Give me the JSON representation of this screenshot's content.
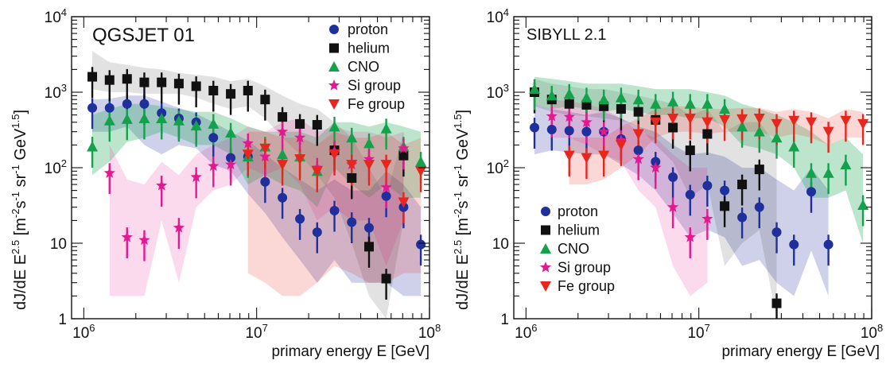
{
  "figure": {
    "y_axis_label": "dJ/dE  E^2.5  [m^-2 s^-1 sr^-1 GeV^1.5]",
    "x_axis_label": "primary energy E  [GeV]",
    "x_ticks": [
      "10^6",
      "10^7",
      "10^8"
    ],
    "y_ticks": [
      "1",
      "10",
      "10^2",
      "10^3",
      "10^4"
    ]
  },
  "colors": {
    "proton": "#1f2f9c",
    "helium": "#111111",
    "CNO": "#13a24b",
    "Si group": "#e5198f",
    "Fe group": "#e8261e"
  },
  "chart_data": [
    {
      "type": "scatter",
      "title": "QGSJET 01",
      "xlabel": "primary energy E  [GeV]",
      "ylabel": "dJ/dE  E^2.5  [m^-2 s^-1 sr^-1 GeV^1.5]",
      "x_scale": "log",
      "y_scale": "log",
      "xlim": [
        850000,
        100000000
      ],
      "ylim": [
        1,
        10000
      ],
      "legend_position": "top-right",
      "series": [
        {
          "name": "proton",
          "marker": "circle",
          "x": [
            1120000,
            1410000,
            1780000,
            2240000,
            2820000,
            3550000,
            4470000,
            5620000,
            7080000,
            8910000,
            11200000,
            14100000,
            17800000,
            22400000,
            28200000,
            35500000,
            44700000,
            56200000,
            70800000,
            89100000
          ],
          "y": [
            620,
            620,
            700,
            700,
            530,
            450,
            400,
            250,
            135,
            140,
            65,
            40,
            21,
            14,
            27,
            19,
            16,
            42,
            30,
            9.6
          ],
          "band_low": [
            300,
            300,
            350,
            200,
            150,
            200,
            180,
            110,
            90,
            45,
            25,
            12,
            6,
            3,
            6,
            3,
            3,
            3,
            2,
            2
          ],
          "band_high": [
            800,
            820,
            900,
            900,
            750,
            620,
            520,
            400,
            300,
            230,
            150,
            100,
            70,
            50,
            70,
            50,
            50,
            90,
            60,
            30
          ]
        },
        {
          "name": "helium",
          "marker": "square",
          "x": [
            1120000,
            1410000,
            1780000,
            2240000,
            2820000,
            3550000,
            4470000,
            5620000,
            7080000,
            8910000,
            11200000,
            14100000,
            17800000,
            22400000,
            28200000,
            35500000,
            44700000,
            56200000,
            70800000
          ],
          "y": [
            1600,
            1450,
            1500,
            1350,
            1350,
            1300,
            1200,
            1050,
            950,
            1050,
            800,
            470,
            380,
            370,
            170,
            73,
            9,
            3.4,
            145
          ],
          "band_low": [
            1100,
            1000,
            1000,
            950,
            950,
            950,
            850,
            700,
            600,
            650,
            450,
            250,
            150,
            80,
            40,
            10,
            2,
            1,
            20
          ],
          "band_high": [
            3500,
            2500,
            2300,
            2100,
            2000,
            1800,
            1700,
            1600,
            1400,
            1500,
            1200,
            900,
            700,
            600,
            400,
            250,
            100,
            40,
            300
          ]
        },
        {
          "name": "CNO",
          "marker": "triangle-up",
          "x": [
            1120000,
            1410000,
            1780000,
            2240000,
            2820000,
            3550000,
            4470000,
            5620000,
            7080000,
            8910000,
            11200000,
            14100000,
            17800000,
            22400000,
            28200000,
            35500000,
            44700000,
            56200000,
            70800000,
            89100000
          ],
          "y": [
            190,
            420,
            440,
            450,
            450,
            420,
            360,
            380,
            290,
            140,
            190,
            150,
            140,
            90,
            350,
            250,
            210,
            330,
            190,
            120
          ],
          "band_low": [
            80,
            120,
            220,
            250,
            300,
            250,
            200,
            200,
            150,
            60,
            80,
            60,
            50,
            30,
            100,
            60,
            40,
            60,
            40,
            40
          ],
          "band_high": [
            500,
            600,
            700,
            700,
            650,
            600,
            550,
            550,
            450,
            350,
            300,
            300,
            300,
            250,
            400,
            400,
            350,
            400,
            350,
            300
          ]
        },
        {
          "name": "Si group",
          "marker": "star",
          "x": [
            1410000,
            1780000,
            2240000,
            2820000,
            3550000,
            4470000,
            5620000,
            7080000,
            8910000,
            11200000,
            14100000,
            17800000,
            22400000,
            28200000,
            35500000,
            44700000,
            56200000,
            70800000
          ],
          "y": [
            85,
            12,
            11,
            58,
            16,
            75,
            105,
            110,
            210,
            140,
            300,
            250,
            100,
            165,
            110,
            130,
            55,
            180
          ],
          "band_low": [
            2,
            2,
            2,
            20,
            3,
            30,
            50,
            60,
            100,
            80,
            100,
            60,
            20,
            30,
            20,
            20,
            5,
            20
          ],
          "band_high": [
            200,
            70,
            60,
            120,
            80,
            150,
            200,
            250,
            350,
            300,
            400,
            450,
            300,
            350,
            300,
            300,
            250,
            300
          ]
        },
        {
          "name": "Fe group",
          "marker": "triangle-down",
          "x": [
            8910000,
            11200000,
            14100000,
            17800000,
            22400000,
            28200000,
            35500000,
            44700000,
            56200000,
            70800000,
            89100000
          ],
          "y": [
            150,
            180,
            110,
            130,
            90,
            150,
            110,
            110,
            110,
            35,
            90
          ],
          "band_low": [
            4,
            3,
            2,
            2,
            3,
            5,
            4,
            3,
            3,
            4,
            4
          ],
          "band_high": [
            300,
            300,
            250,
            250,
            200,
            300,
            250,
            250,
            300,
            200,
            250
          ]
        }
      ]
    },
    {
      "type": "scatter",
      "title": "SIBYLL 2.1",
      "xlabel": "primary energy E  [GeV]",
      "ylabel": "dJ/dE  E^2.5  [m^-2 s^-1 sr^-1 GeV^1.5]",
      "x_scale": "log",
      "y_scale": "log",
      "xlim": [
        850000,
        100000000
      ],
      "ylim": [
        1,
        10000
      ],
      "legend_position": "bottom-left",
      "series": [
        {
          "name": "proton",
          "marker": "circle",
          "x": [
            1120000,
            1410000,
            1780000,
            2240000,
            2820000,
            3550000,
            4470000,
            5620000,
            7080000,
            8910000,
            11200000,
            14100000,
            17800000,
            22400000,
            28200000,
            35500000,
            44700000,
            56200000
          ],
          "y": [
            340,
            320,
            310,
            300,
            300,
            240,
            170,
            120,
            75,
            44,
            58,
            50,
            22,
            30,
            14,
            9.6,
            48,
            9.6
          ],
          "band_low": [
            150,
            170,
            160,
            150,
            150,
            110,
            80,
            50,
            25,
            12,
            15,
            12,
            5,
            6,
            3,
            2,
            8,
            2
          ],
          "band_high": [
            700,
            600,
            550,
            500,
            550,
            450,
            350,
            300,
            200,
            150,
            160,
            140,
            100,
            100,
            70,
            50,
            100,
            50
          ]
        },
        {
          "name": "helium",
          "marker": "square",
          "x": [
            1120000,
            1410000,
            1780000,
            2240000,
            2820000,
            3550000,
            4470000,
            5620000,
            7080000,
            8910000,
            11200000,
            14100000,
            17800000,
            22400000,
            28200000
          ],
          "y": [
            1000,
            800,
            700,
            680,
            650,
            600,
            550,
            430,
            340,
            170,
            280,
            31,
            60,
            95,
            1.6
          ],
          "band_low": [
            650,
            550,
            500,
            480,
            450,
            420,
            350,
            200,
            120,
            40,
            60,
            5,
            10,
            15,
            1
          ],
          "band_high": [
            1500,
            1300,
            1200,
            1100,
            1100,
            1000,
            900,
            800,
            700,
            500,
            600,
            300,
            400,
            400,
            200
          ]
        },
        {
          "name": "CNO",
          "marker": "triangle-up",
          "x": [
            1120000,
            1410000,
            1780000,
            2240000,
            2820000,
            3550000,
            4470000,
            5620000,
            7080000,
            8910000,
            11200000,
            14100000,
            17800000,
            22400000,
            28200000,
            35500000,
            44700000,
            56200000,
            70800000,
            89100000
          ],
          "y": [
            1100,
            900,
            950,
            850,
            800,
            850,
            800,
            700,
            750,
            700,
            700,
            600,
            350,
            300,
            250,
            190,
            85,
            85,
            110,
            32
          ],
          "band_low": [
            700,
            600,
            650,
            600,
            550,
            600,
            550,
            500,
            500,
            450,
            450,
            350,
            200,
            180,
            150,
            100,
            40,
            40,
            50,
            10
          ],
          "band_high": [
            1600,
            1500,
            1400,
            1300,
            1300,
            1300,
            1200,
            1100,
            1100,
            1100,
            1000,
            900,
            700,
            600,
            500,
            400,
            300,
            200,
            250,
            150
          ]
        },
        {
          "name": "Si group",
          "marker": "star",
          "x": [
            1410000,
            1780000,
            2240000,
            2820000,
            3550000,
            4470000,
            5620000,
            7080000,
            8910000,
            11200000
          ],
          "y": [
            480,
            470,
            400,
            300,
            230,
            130,
            100,
            30,
            12,
            21
          ],
          "band_low": [
            250,
            250,
            200,
            150,
            120,
            50,
            30,
            5,
            2,
            3
          ],
          "band_high": [
            800,
            750,
            700,
            600,
            450,
            300,
            250,
            150,
            100,
            100
          ]
        },
        {
          "name": "Fe group",
          "marker": "triangle-down",
          "x": [
            1780000,
            2240000,
            2820000,
            3550000,
            4470000,
            5620000,
            7080000,
            8910000,
            11200000,
            14100000,
            17800000,
            22400000,
            28200000,
            35500000,
            44700000,
            56200000,
            70800000,
            89100000
          ],
          "y": [
            145,
            135,
            145,
            200,
            280,
            400,
            450,
            450,
            400,
            430,
            440,
            450,
            380,
            420,
            400,
            300,
            420,
            380
          ],
          "band_low": [
            60,
            60,
            70,
            100,
            150,
            250,
            300,
            300,
            280,
            300,
            300,
            300,
            250,
            280,
            250,
            200,
            250,
            250
          ],
          "band_high": [
            250,
            250,
            250,
            350,
            450,
            600,
            650,
            650,
            600,
            600,
            620,
            620,
            550,
            600,
            550,
            450,
            600,
            550
          ]
        }
      ]
    }
  ]
}
